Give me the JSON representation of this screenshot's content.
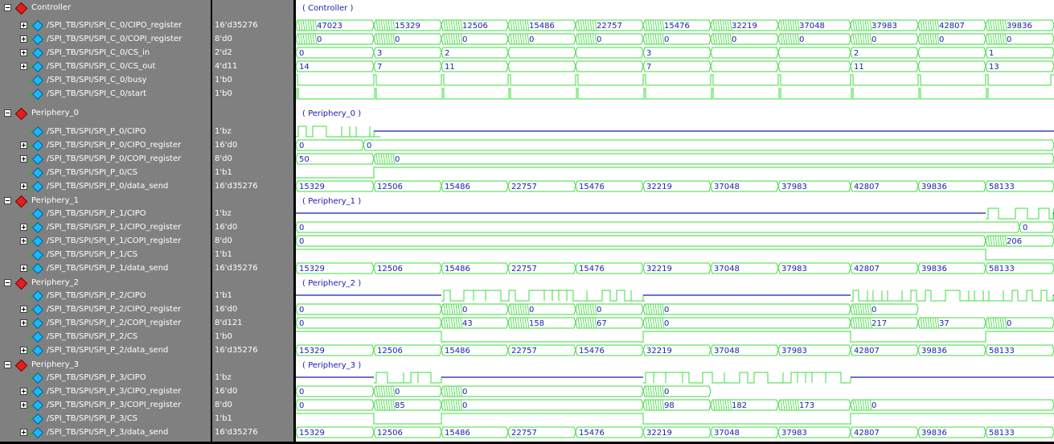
{
  "signals": [
    {
      "kind": "group",
      "label": "Controller",
      "group": "( Controller )"
    },
    {
      "kind": "bus",
      "label": "/SPI_TB/SPI/SPI_C_0/CIPO_register",
      "value": "16'd35276",
      "seg": [
        {
          "v": "47023",
          "h": true
        },
        {
          "v": "15329",
          "h": true
        },
        {
          "v": "12506",
          "h": true
        },
        {
          "v": "15486",
          "h": true
        },
        {
          "v": "22757",
          "h": true
        },
        {
          "v": "15476",
          "h": true
        },
        {
          "v": "32219",
          "h": true
        },
        {
          "v": "37048",
          "h": true
        },
        {
          "v": "37983",
          "h": true
        },
        {
          "v": "42807",
          "h": true
        },
        {
          "v": "39836",
          "h": true
        }
      ]
    },
    {
      "kind": "bus",
      "label": "/SPI_TB/SPI/SPI_C_0/COPI_register",
      "value": "8'd0",
      "seg": [
        {
          "v": "0",
          "h": true
        },
        {
          "v": "0",
          "h": true
        },
        {
          "v": "0",
          "h": true
        },
        {
          "v": "0",
          "h": true
        },
        {
          "v": "0",
          "h": true
        },
        {
          "v": "0",
          "h": true
        },
        {
          "v": "0",
          "h": true
        },
        {
          "v": "0",
          "h": true
        },
        {
          "v": "0",
          "h": true
        },
        {
          "v": "0",
          "h": true
        },
        {
          "v": "0",
          "h": true
        }
      ]
    },
    {
      "kind": "bus",
      "label": "/SPI_TB/SPI/SPI_C_0/CS_in",
      "value": "2'd2",
      "seg": [
        {
          "v": "0"
        },
        {
          "v": "3"
        },
        {
          "v": "2"
        },
        {
          "v": ""
        },
        {
          "v": ""
        },
        {
          "v": "3"
        },
        {
          "v": ""
        },
        {
          "v": ""
        },
        {
          "v": "2"
        },
        {
          "v": ""
        },
        {
          "v": "1"
        }
      ]
    },
    {
      "kind": "bus",
      "label": "/SPI_TB/SPI/SPI_C_0/CS_out",
      "value": "4'd11",
      "seg": [
        {
          "v": "14"
        },
        {
          "v": "7"
        },
        {
          "v": "11"
        },
        {
          "v": ""
        },
        {
          "v": ""
        },
        {
          "v": "7"
        },
        {
          "v": ""
        },
        {
          "v": ""
        },
        {
          "v": "11"
        },
        {
          "v": ""
        },
        {
          "v": "13"
        }
      ]
    },
    {
      "kind": "bit",
      "label": "/SPI_TB/SPI/SPI_C_0/busy",
      "value": "1'b0"
    },
    {
      "kind": "bit",
      "label": "/SPI_TB/SPI/SPI_C_0/start",
      "value": "1'b0"
    },
    {
      "kind": "group",
      "label": "Periphery_0",
      "group": "( Periphery_0 )"
    },
    {
      "kind": "bit",
      "label": "/SPI_TB/SPI/SPI_P_0/CIPO",
      "value": "1'bz"
    },
    {
      "kind": "bus",
      "label": "/SPI_TB/SPI/SPI_P_0/CIPO_register",
      "value": "16'd0",
      "seg": [
        {
          "v": "0"
        },
        {
          "v": "0"
        }
      ]
    },
    {
      "kind": "bus",
      "label": "/SPI_TB/SPI/SPI_P_0/COPI_register",
      "value": "8'd0",
      "seg": [
        {
          "v": "50"
        },
        {
          "v": "0"
        }
      ]
    },
    {
      "kind": "bit",
      "label": "/SPI_TB/SPI/SPI_P_0/CS",
      "value": "1'b1"
    },
    {
      "kind": "bus",
      "label": "/SPI_TB/SPI/SPI_P_0/data_send",
      "value": "16'd35276",
      "seg": [
        {
          "v": "15329"
        },
        {
          "v": "12506"
        },
        {
          "v": "15486"
        },
        {
          "v": "22757"
        },
        {
          "v": "15476"
        },
        {
          "v": "32219"
        },
        {
          "v": "37048"
        },
        {
          "v": "37983"
        },
        {
          "v": "42807"
        },
        {
          "v": "39836"
        },
        {
          "v": "58133"
        }
      ]
    },
    {
      "kind": "group",
      "label": "Periphery_1",
      "group": "( Periphery_1 )"
    },
    {
      "kind": "bit",
      "label": "/SPI_TB/SPI/SPI_P_1/CIPO",
      "value": "1'bz"
    },
    {
      "kind": "bus",
      "label": "/SPI_TB/SPI/SPI_P_1/CIPO_register",
      "value": "16'd0",
      "seg": [
        {
          "v": "0"
        },
        {
          "v": "0"
        }
      ]
    },
    {
      "kind": "bus",
      "label": "/SPI_TB/SPI/SPI_P_1/COPI_register",
      "value": "8'd0",
      "seg": [
        {
          "v": "0"
        },
        {
          "v": "206"
        }
      ]
    },
    {
      "kind": "bit",
      "label": "/SPI_TB/SPI/SPI_P_1/CS",
      "value": "1'b1"
    },
    {
      "kind": "bus",
      "label": "/SPI_TB/SPI/SPI_P_1/data_send",
      "value": "16'd35276",
      "seg": [
        {
          "v": "15329"
        },
        {
          "v": "12506"
        },
        {
          "v": "15486"
        },
        {
          "v": "22757"
        },
        {
          "v": "15476"
        },
        {
          "v": "32219"
        },
        {
          "v": "37048"
        },
        {
          "v": "37983"
        },
        {
          "v": "42807"
        },
        {
          "v": "39836"
        },
        {
          "v": "58133"
        }
      ]
    },
    {
      "kind": "group",
      "label": "Periphery_2",
      "group": "( Periphery_2 )"
    },
    {
      "kind": "bit",
      "label": "/SPI_TB/SPI/SPI_P_2/CIPO",
      "value": "1'b1"
    },
    {
      "kind": "bus",
      "label": "/SPI_TB/SPI/SPI_P_2/CIPO_register",
      "value": "16'd0",
      "seg": [
        {
          "v": "0"
        },
        {
          "v": "0"
        },
        {
          "v": "0"
        },
        {
          "v": "0"
        },
        {
          "v": "0"
        },
        {
          "v": "0"
        }
      ]
    },
    {
      "kind": "bus",
      "label": "/SPI_TB/SPI/SPI_P_2/COPI_register",
      "value": "8'd121",
      "seg": [
        {
          "v": "0"
        },
        {
          "v": "43"
        },
        {
          "v": "158"
        },
        {
          "v": "67"
        },
        {
          "v": "0"
        },
        {
          "v": "217"
        },
        {
          "v": "37"
        },
        {
          "v": "0"
        }
      ]
    },
    {
      "kind": "bit",
      "label": "/SPI_TB/SPI/SPI_P_2/CS",
      "value": "1'b0"
    },
    {
      "kind": "bus",
      "label": "/SPI_TB/SPI/SPI_P_2/data_send",
      "value": "16'd35276",
      "seg": [
        {
          "v": "15329"
        },
        {
          "v": "12506"
        },
        {
          "v": "15486"
        },
        {
          "v": "22757"
        },
        {
          "v": "15476"
        },
        {
          "v": "32219"
        },
        {
          "v": "37048"
        },
        {
          "v": "37983"
        },
        {
          "v": "42807"
        },
        {
          "v": "39836"
        },
        {
          "v": "58133"
        }
      ]
    },
    {
      "kind": "group",
      "label": "Periphery_3",
      "group": "( Periphery_3 )"
    },
    {
      "kind": "bit",
      "label": "/SPI_TB/SPI/SPI_P_3/CIPO",
      "value": "1'bz"
    },
    {
      "kind": "bus",
      "label": "/SPI_TB/SPI/SPI_P_3/CIPO_register",
      "value": "16'd0",
      "seg": [
        {
          "v": "0"
        },
        {
          "v": "0"
        },
        {
          "v": "0"
        },
        {
          "v": "0"
        }
      ]
    },
    {
      "kind": "bus",
      "label": "/SPI_TB/SPI/SPI_P_3/COPI_register",
      "value": "8'd0",
      "seg": [
        {
          "v": "0"
        },
        {
          "v": "85"
        },
        {
          "v": "0"
        },
        {
          "v": "98"
        },
        {
          "v": "182"
        },
        {
          "v": "173"
        },
        {
          "v": "0"
        }
      ]
    },
    {
      "kind": "bit",
      "label": "/SPI_TB/SPI/SPI_P_3/CS",
      "value": "1'b1"
    },
    {
      "kind": "bus",
      "label": "/SPI_TB/SPI/SPI_P_3/data_send",
      "value": "16'd35276",
      "seg": [
        {
          "v": "15329"
        },
        {
          "v": "12506"
        },
        {
          "v": "15486"
        },
        {
          "v": "22757"
        },
        {
          "v": "15476"
        },
        {
          "v": "32219"
        },
        {
          "v": "37048"
        },
        {
          "v": "37983"
        },
        {
          "v": "42807"
        },
        {
          "v": "39836"
        },
        {
          "v": "58133"
        }
      ]
    }
  ],
  "colors": {
    "wave": "#3ddc3d",
    "text": "#1b1bb0",
    "group_bg": "#808080",
    "hiz": "#1b1bb0"
  },
  "icons": {
    "group": "red-diamond-icon",
    "signal": "cyan-diamond-icon",
    "expand": "plus-box-icon",
    "collapse": "minus-box-icon"
  }
}
